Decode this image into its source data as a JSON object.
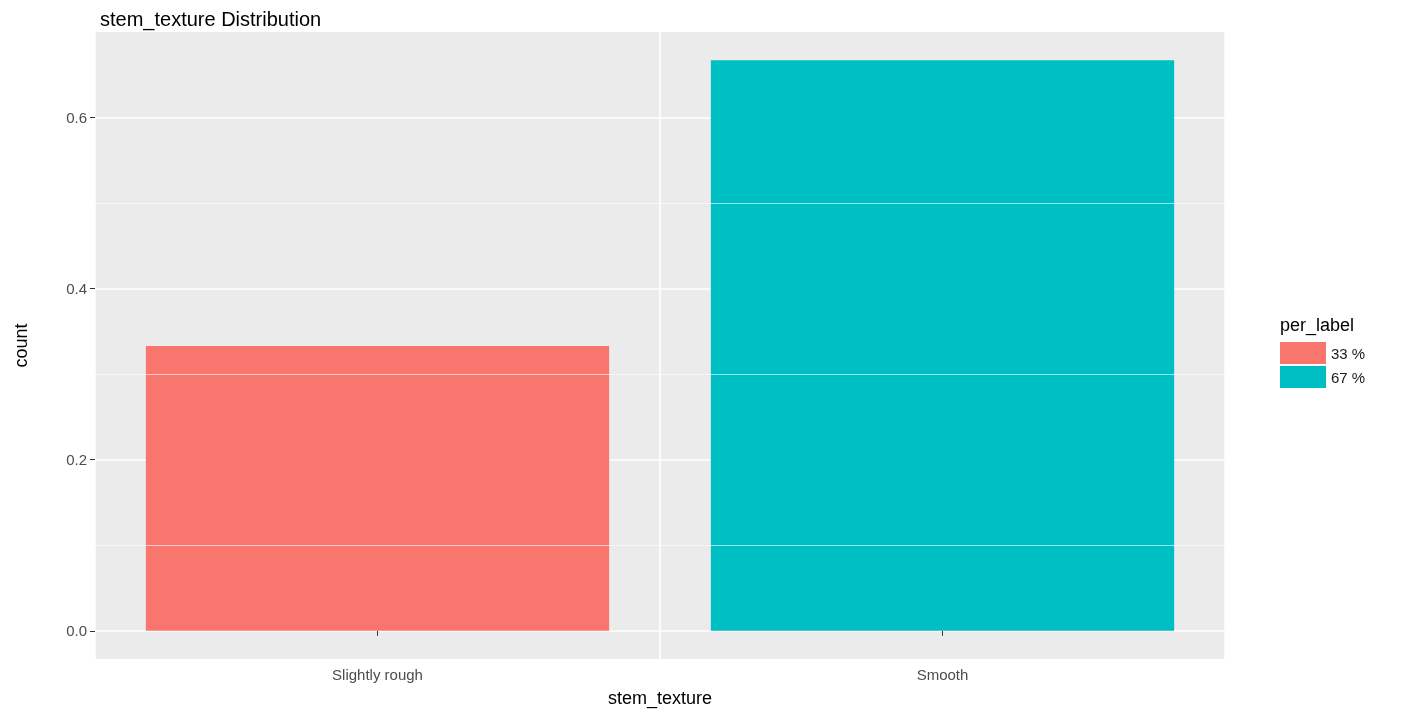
{
  "chart_data": {
    "type": "bar",
    "title": "stem_texture Distribution",
    "xlabel": "stem_texture",
    "ylabel": "count",
    "legend_title": "per_label",
    "categories": [
      "Slightly rough",
      "Smooth"
    ],
    "series": [
      {
        "name": "33 %",
        "color": "#f8766d",
        "values": [
          0.333,
          null
        ]
      },
      {
        "name": "67 %",
        "color": "#00bfc4",
        "values": [
          null,
          0.667
        ]
      }
    ],
    "stacked": true,
    "ylim": [
      -0.033,
      0.7
    ],
    "yticks": [
      {
        "value": 0,
        "label": "0.0"
      },
      {
        "value": 0.2,
        "label": "0.2"
      },
      {
        "value": 0.4,
        "label": "0.4"
      },
      {
        "value": 0.6,
        "label": "0.6"
      }
    ],
    "grid": true,
    "legend": "right"
  }
}
